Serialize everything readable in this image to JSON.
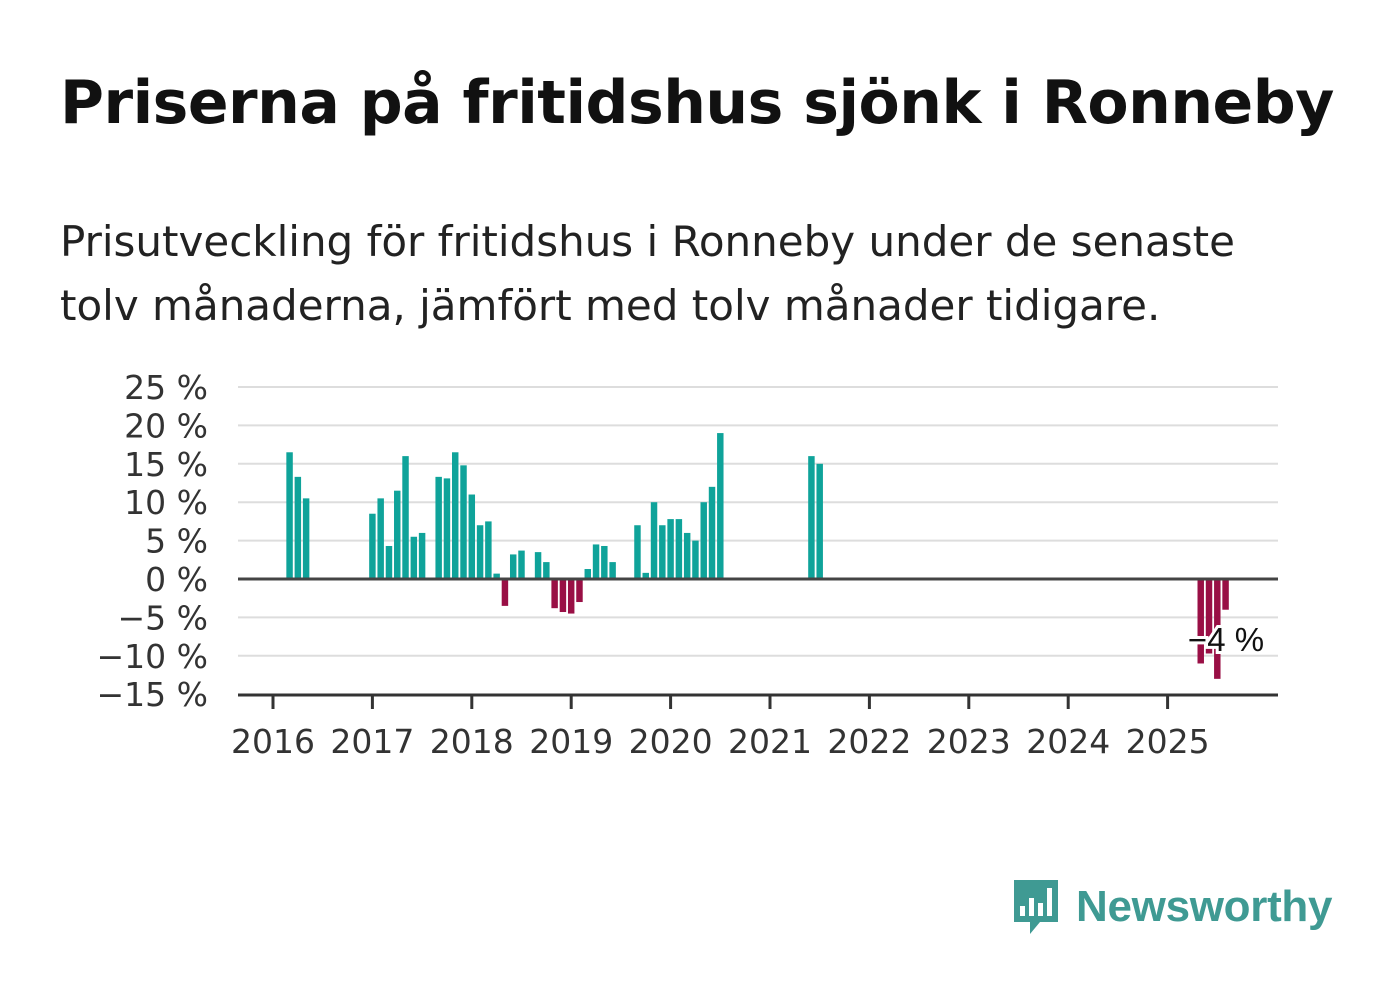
{
  "title": "Priserna på fritidshus sjönk i Ronneby",
  "subtitle": "Prisutveckling för fritidshus i Ronneby under de senaste tolv månaderna, jämfört med tolv månader tidigare.",
  "brand": {
    "name": "Newsworthy",
    "logo_icon": "bar-chart-bubble-icon"
  },
  "colors": {
    "positive": "#0fa39a",
    "negative": "#990f45",
    "zero_line": "#444444",
    "grid": "#dddddd",
    "brand": "#3f9a93"
  },
  "chart_data": {
    "type": "bar",
    "title": "Priserna på fritidshus sjönk i Ronneby",
    "xlabel": "",
    "ylabel": "",
    "ylim": [
      -15,
      25
    ],
    "yticks": [
      25,
      20,
      15,
      10,
      5,
      0,
      -5,
      -10,
      -15
    ],
    "ytick_labels": [
      "25 %",
      "20 %",
      "15 %",
      "10 %",
      "5 %",
      "0 %",
      "−5 %",
      "−10 %",
      "−15 %"
    ],
    "xticks": [
      "2016",
      "2017",
      "2018",
      "2019",
      "2020",
      "2021",
      "2022",
      "2023",
      "2024",
      "2025"
    ],
    "grid": true,
    "legend": "none",
    "annotation": {
      "text": "−4 %",
      "date": "2025-08",
      "value": -4
    },
    "values": [
      {
        "date": "2016-03",
        "value": 16.5
      },
      {
        "date": "2016-04",
        "value": 13.3
      },
      {
        "date": "2016-05",
        "value": 10.5
      },
      {
        "date": "2017-01",
        "value": 8.5
      },
      {
        "date": "2017-02",
        "value": 10.5
      },
      {
        "date": "2017-03",
        "value": 4.3
      },
      {
        "date": "2017-04",
        "value": 11.5
      },
      {
        "date": "2017-05",
        "value": 16.0
      },
      {
        "date": "2017-06",
        "value": 5.5
      },
      {
        "date": "2017-07",
        "value": 6.0
      },
      {
        "date": "2017-09",
        "value": 13.3
      },
      {
        "date": "2017-10",
        "value": 13.1
      },
      {
        "date": "2017-11",
        "value": 16.5
      },
      {
        "date": "2017-12",
        "value": 14.8
      },
      {
        "date": "2018-01",
        "value": 11.0
      },
      {
        "date": "2018-02",
        "value": 7.0
      },
      {
        "date": "2018-03",
        "value": 7.5
      },
      {
        "date": "2018-04",
        "value": 0.7
      },
      {
        "date": "2018-05",
        "value": -3.5
      },
      {
        "date": "2018-06",
        "value": 3.2
      },
      {
        "date": "2018-07",
        "value": 3.7
      },
      {
        "date": "2018-09",
        "value": 3.5
      },
      {
        "date": "2018-10",
        "value": 2.2
      },
      {
        "date": "2018-11",
        "value": -3.8
      },
      {
        "date": "2018-12",
        "value": -4.3
      },
      {
        "date": "2019-01",
        "value": -4.5
      },
      {
        "date": "2019-02",
        "value": -3.0
      },
      {
        "date": "2019-03",
        "value": 1.3
      },
      {
        "date": "2019-04",
        "value": 4.5
      },
      {
        "date": "2019-05",
        "value": 4.3
      },
      {
        "date": "2019-06",
        "value": 2.2
      },
      {
        "date": "2019-09",
        "value": 7.0
      },
      {
        "date": "2019-10",
        "value": 0.8
      },
      {
        "date": "2019-11",
        "value": 10.0
      },
      {
        "date": "2019-12",
        "value": 7.0
      },
      {
        "date": "2020-01",
        "value": 7.8
      },
      {
        "date": "2020-02",
        "value": 7.8
      },
      {
        "date": "2020-03",
        "value": 6.0
      },
      {
        "date": "2020-04",
        "value": 5.0
      },
      {
        "date": "2020-05",
        "value": 10.0
      },
      {
        "date": "2020-06",
        "value": 12.0
      },
      {
        "date": "2020-07",
        "value": 19.0
      },
      {
        "date": "2021-06",
        "value": 16.0
      },
      {
        "date": "2021-07",
        "value": 15.0
      },
      {
        "date": "2025-05",
        "value": -11.0
      },
      {
        "date": "2025-06",
        "value": -9.7
      },
      {
        "date": "2025-07",
        "value": -13.0
      },
      {
        "date": "2025-08",
        "value": -4.0
      }
    ]
  }
}
